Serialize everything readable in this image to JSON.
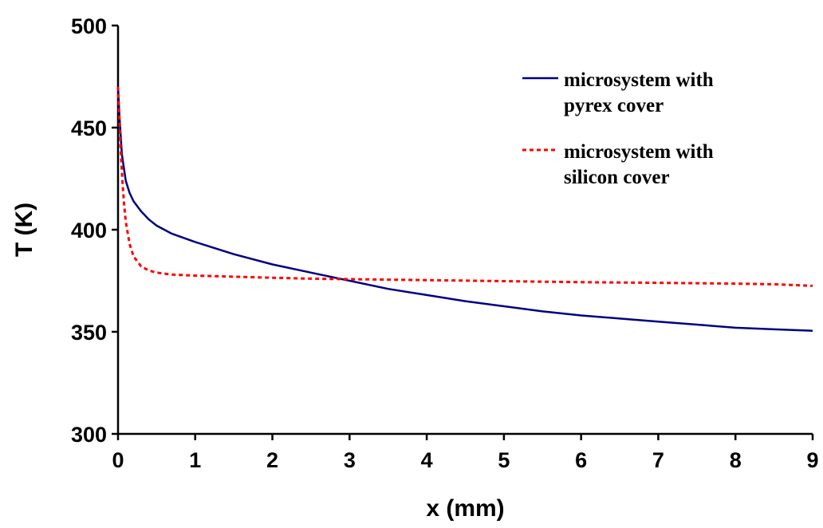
{
  "chart_data": {
    "type": "line",
    "title": "",
    "xlabel": "x (mm)",
    "ylabel": "T (K)",
    "xlim": [
      0,
      9
    ],
    "ylim": [
      300,
      500
    ],
    "xticks": [
      "0",
      "1",
      "2",
      "3",
      "4",
      "5",
      "6",
      "7",
      "8",
      "9"
    ],
    "yticks": [
      "300",
      "350",
      "400",
      "450",
      "500"
    ],
    "grid": false,
    "legend_position": "top-right",
    "series": [
      {
        "name": "microsystem with pyrex cover",
        "color": "#000080",
        "line_style": "solid",
        "x": [
          0,
          0.02,
          0.05,
          0.1,
          0.15,
          0.2,
          0.3,
          0.4,
          0.5,
          0.7,
          1,
          1.5,
          2,
          2.5,
          3,
          3.5,
          4,
          4.5,
          5,
          5.5,
          6,
          6.5,
          7,
          7.5,
          8,
          8.5,
          9
        ],
        "y": [
          470,
          455,
          437,
          424,
          418,
          414,
          409,
          405,
          402,
          398,
          394,
          388,
          383,
          379,
          375,
          371,
          368,
          365,
          362.5,
          360,
          358,
          356.5,
          355,
          353.5,
          352,
          351.2,
          350.5
        ]
      },
      {
        "name": "microsystem with silicon cover",
        "color": "#ff0000",
        "line_style": "dashed",
        "x": [
          0,
          0.02,
          0.04,
          0.06,
          0.08,
          0.1,
          0.15,
          0.2,
          0.3,
          0.4,
          0.5,
          0.7,
          1,
          1.5,
          2,
          2.5,
          3,
          4,
          5,
          6,
          7,
          8,
          8.5,
          9
        ],
        "y": [
          470,
          452,
          435,
          422,
          412,
          404,
          393,
          387,
          382,
          380,
          379,
          378,
          377.5,
          377,
          376.5,
          376,
          375.8,
          375.3,
          374.8,
          374.3,
          374,
          373.6,
          373.3,
          372.5
        ]
      }
    ]
  }
}
